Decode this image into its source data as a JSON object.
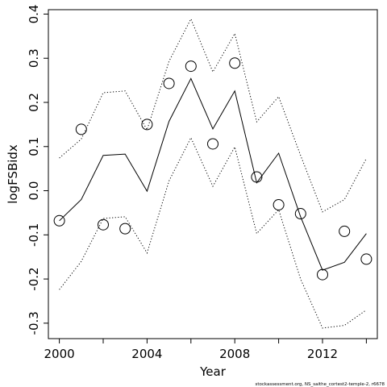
{
  "chart_data": {
    "type": "line",
    "xlabel": "Year",
    "ylabel": "logFSBidx",
    "xlim": [
      1999.5,
      2014.5
    ],
    "ylim": [
      -0.335,
      0.41
    ],
    "x_ticks": [
      2000,
      2002,
      2004,
      2006,
      2008,
      2010,
      2012,
      2014
    ],
    "x_tick_labels": [
      "2000",
      "",
      "2004",
      "",
      "2008",
      "",
      "2012",
      ""
    ],
    "y_ticks": [
      -0.3,
      -0.2,
      -0.1,
      0.0,
      0.1,
      0.2,
      0.3,
      0.4
    ],
    "y_tick_labels": [
      "-0.3",
      "-0.2",
      "-0.1",
      "0.0",
      "0.1",
      "0.2",
      "0.3",
      "0.4"
    ],
    "grid": false,
    "legend": "none",
    "x": [
      2000,
      2001,
      2002,
      2003,
      2004,
      2005,
      2006,
      2007,
      2008,
      2009,
      2010,
      2011,
      2012,
      2013,
      2014
    ],
    "series": [
      {
        "style": "points-open-circle",
        "values": [
          -0.068,
          0.139,
          -0.077,
          -0.086,
          0.15,
          0.243,
          0.282,
          0.106,
          0.289,
          0.031,
          -0.032,
          -0.052,
          -0.19,
          -0.092,
          -0.155
        ]
      },
      {
        "style": "solid-line",
        "values": [
          -0.068,
          -0.02,
          0.08,
          0.083,
          -0.001,
          0.157,
          0.254,
          0.14,
          0.226,
          0.018,
          0.085,
          -0.059,
          -0.18,
          -0.162,
          -0.097
        ]
      },
      {
        "style": "dotted-line",
        "values": [
          0.074,
          0.117,
          0.222,
          0.226,
          0.138,
          0.293,
          0.389,
          0.269,
          0.356,
          0.156,
          0.213,
          0.08,
          -0.048,
          -0.02,
          0.073
        ]
      },
      {
        "style": "dotted-line",
        "values": [
          -0.224,
          -0.16,
          -0.063,
          -0.059,
          -0.141,
          0.022,
          0.12,
          0.01,
          0.099,
          -0.097,
          -0.043,
          -0.2,
          -0.311,
          -0.305,
          -0.27
        ]
      }
    ]
  },
  "footer_text": "stockassessment.org, NS_saithe_cortest2-temple-2, r6678"
}
